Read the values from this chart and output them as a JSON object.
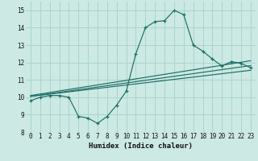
{
  "xlabel": "Humidex (Indice chaleur)",
  "bg_color": "#cce9e3",
  "line_color": "#1e6e65",
  "grid_color": "#a8d5ce",
  "xlim": [
    -0.5,
    23.5
  ],
  "ylim": [
    8,
    15.5
  ],
  "xticks": [
    0,
    1,
    2,
    3,
    4,
    5,
    6,
    7,
    8,
    9,
    10,
    11,
    12,
    13,
    14,
    15,
    16,
    17,
    18,
    19,
    20,
    21,
    22,
    23
  ],
  "yticks": [
    8,
    9,
    10,
    11,
    12,
    13,
    14,
    15
  ],
  "main_x": [
    0,
    1,
    2,
    3,
    4,
    5,
    6,
    7,
    8,
    9,
    10,
    11,
    12,
    13,
    14,
    15,
    16,
    17,
    18,
    19,
    20,
    21,
    22,
    23
  ],
  "main_y": [
    9.8,
    10.0,
    10.1,
    10.1,
    10.0,
    8.9,
    8.8,
    8.5,
    8.9,
    9.55,
    10.35,
    12.5,
    14.0,
    14.35,
    14.4,
    15.0,
    14.75,
    13.0,
    12.65,
    12.2,
    11.8,
    12.05,
    11.95,
    11.7
  ],
  "line1_x": [
    0,
    23
  ],
  "line1_y": [
    10.05,
    11.55
  ],
  "line2_x": [
    0,
    23
  ],
  "line2_y": [
    10.05,
    11.82
  ],
  "line3_x": [
    0,
    23
  ],
  "line3_y": [
    10.1,
    12.1
  ]
}
